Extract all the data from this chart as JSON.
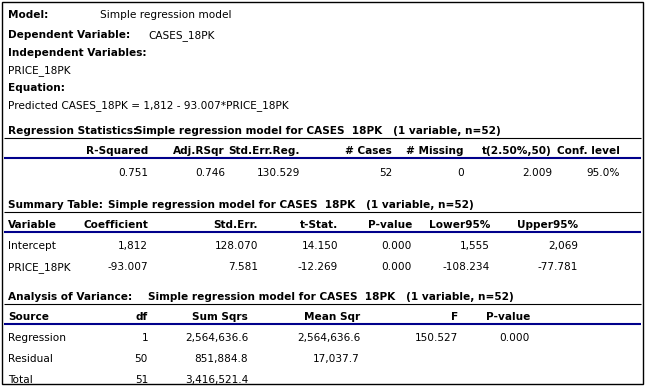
{
  "bg_color": "#ffffff",
  "border_color": "#000000",
  "line_color": "#00008B",
  "figsize": [
    6.45,
    3.86
  ],
  "dpi": 100,
  "reg_stat_cols": [
    "",
    "R-Squared",
    "Adj.RSqr",
    "Std.Err.Reg.",
    "# Cases",
    "# Missing",
    "t(2.50%,50)",
    "Conf. level"
  ],
  "reg_stat_vals": [
    "",
    "0.751",
    "0.746",
    "130.529",
    "52",
    "0",
    "2.009",
    "95.0%"
  ],
  "summary_cols": [
    "Variable",
    "Coefficient",
    "Std.Err.",
    "t-Stat.",
    "P-value",
    "Lower95%",
    "Upper95%"
  ],
  "summary_rows": [
    [
      "Intercept",
      "1,812",
      "128.070",
      "14.150",
      "0.000",
      "1,555",
      "2,069"
    ],
    [
      "PRICE_18PK",
      "-93.007",
      "7.581",
      "-12.269",
      "0.000",
      "-108.234",
      "-77.781"
    ]
  ],
  "anova_cols": [
    "Source",
    "df",
    "Sum Sqrs",
    "Mean Sqr",
    "F",
    "P-value"
  ],
  "anova_rows": [
    [
      "Regression",
      "1",
      "2,564,636.6",
      "2,564,636.6",
      "150.527",
      "0.000"
    ],
    [
      "Residual",
      "50",
      "851,884.8",
      "17,037.7",
      "",
      ""
    ],
    [
      "Total",
      "51",
      "3,416,521.4",
      "",
      "",
      ""
    ]
  ]
}
